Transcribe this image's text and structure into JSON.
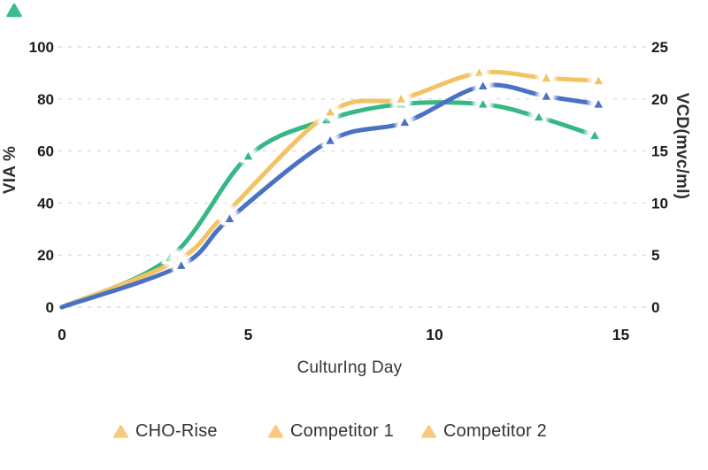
{
  "logo": {
    "shape": "triangle",
    "color": "#3ABD8B"
  },
  "chart_data": {
    "type": "line",
    "title": "",
    "xlabel": "CulturIng Day",
    "ylabel_left": "VIA %",
    "ylabel_right": "VCD(mvc/ml)",
    "x_ticks": [
      0,
      5,
      10,
      15
    ],
    "y_left_ticks": [
      0,
      20,
      40,
      60,
      80,
      100
    ],
    "y_right_ticks": [
      0,
      5,
      10,
      15,
      20,
      25
    ],
    "xlim": [
      0,
      15.8
    ],
    "ylim_left": [
      0,
      100
    ],
    "ylim_right": [
      0,
      25
    ],
    "grid": "horizontal-dashed",
    "grid_color": "#dcdcdc",
    "marker": "triangle-white-outline-with-glow",
    "tick_color": "#1b1b1b",
    "series": [
      {
        "id": "green",
        "color": "#35B883",
        "x": [
          0,
          2.9,
          5.0,
          7.1,
          9.1,
          11.3,
          12.8,
          14.3
        ],
        "via": [
          0,
          19,
          58,
          72,
          78,
          78,
          73,
          66
        ]
      },
      {
        "id": "yellow",
        "color": "#F2C363",
        "x": [
          0,
          3.1,
          4.4,
          7.2,
          9.1,
          11.2,
          13.0,
          14.4
        ],
        "via": [
          0,
          18,
          36,
          75,
          80,
          90,
          88,
          87
        ]
      },
      {
        "id": "blue",
        "color": "#4A71C4",
        "x": [
          0,
          3.2,
          4.5,
          7.2,
          9.2,
          11.3,
          13.0,
          14.4
        ],
        "via": [
          0,
          16,
          34,
          64,
          71,
          85,
          81,
          78
        ]
      }
    ],
    "legend": {
      "position": "bottom",
      "marker_color": "#F6CB80",
      "items": [
        "CHO-Rise",
        "Competitor 1",
        "Competitor 2"
      ]
    },
    "note": "right axis 0-25 shares gridlines with left axis 0-100"
  }
}
